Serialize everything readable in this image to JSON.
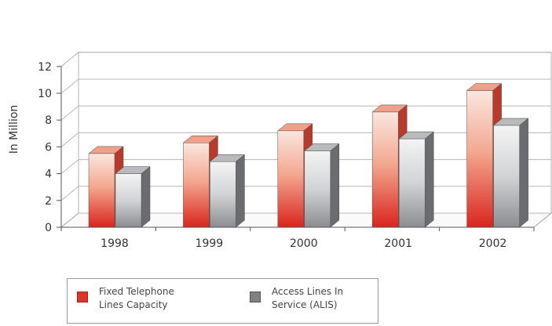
{
  "chart_data": {
    "type": "bar",
    "categories": [
      "1998",
      "1999",
      "2000",
      "2001",
      "2002"
    ],
    "series": [
      {
        "name": "Fixed Telephone Lines Capacity",
        "values": [
          5.5,
          6.3,
          7.2,
          8.6,
          10.2
        ],
        "color": "#d9362b"
      },
      {
        "name": "Access Lines In Service (ALIS)",
        "values": [
          4.0,
          4.9,
          5.7,
          6.6,
          7.6
        ],
        "color": "#7f8184"
      }
    ],
    "title": "",
    "xlabel": "",
    "ylabel": "In Million",
    "ylim": [
      0,
      12
    ],
    "yticks": [
      0,
      2,
      4,
      6,
      8,
      10,
      12
    ],
    "grid": true,
    "legend_position": "bottom-left",
    "legend": [
      {
        "line1": "Fixed Telephone",
        "line2": "Lines Capacity"
      },
      {
        "line1": "Access Lines In",
        "line2": "Service (ALIS)"
      }
    ]
  }
}
